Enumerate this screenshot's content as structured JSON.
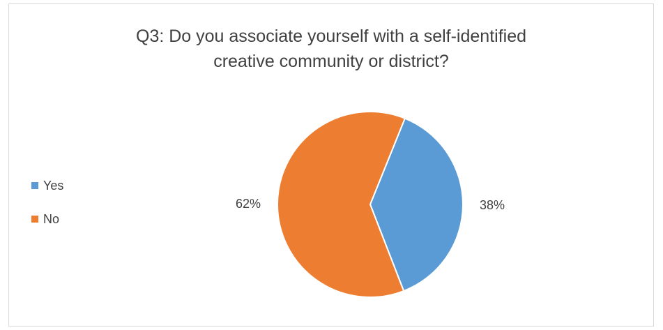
{
  "chart_data": {
    "type": "pie",
    "title": "Q3: Do you associate yourself with a self-identified\ncreative community or district?",
    "categories": [
      "Yes",
      "No"
    ],
    "values": [
      38,
      62
    ],
    "data_labels": [
      "38%",
      "62%"
    ],
    "colors": [
      "#5b9bd5",
      "#ed7d31"
    ],
    "legend_position": "left"
  }
}
